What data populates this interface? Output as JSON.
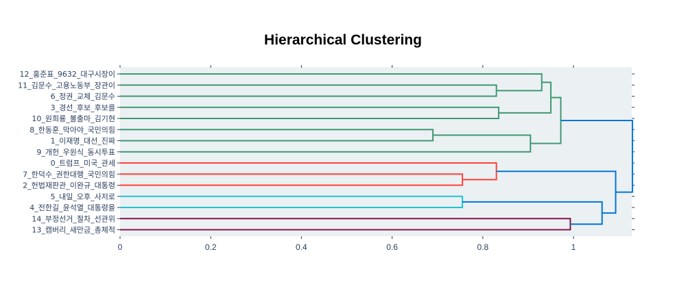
{
  "chart_data": {
    "type": "dendrogram",
    "title": "Hierarchical Clustering",
    "orientation": "horizontal",
    "xlabel": "",
    "ylabel": "",
    "xlim": [
      0,
      1.13
    ],
    "xticks": [
      0,
      0.2,
      0.4,
      0.6,
      0.8,
      1
    ],
    "xtick_labels": [
      "0",
      "0.2",
      "0.4",
      "0.6",
      "0.8",
      "1"
    ],
    "leaves": [
      "12_홍준표_9632_대구시장이",
      "11_김문수_고용노동부_장관이",
      "6_정권_교체_김문수",
      "3_경선_후보_후보를",
      "10_원희룡_불출마_김기현",
      "8_한동훈_막아야_국민의힘",
      "1_이재명_대선_진짜",
      "9_개헌_우원식_동시투표",
      "0_트럼프_미국_관세",
      "7_한덕수_권한대행_국민의힘",
      "2_헌법재판관_이완규_대통령",
      "5_내일_오후_사저로",
      "4_전한길_윤석열_대통령을",
      "14_부정선거_절차_선관위",
      "13_캠버리_새만금_총체적"
    ],
    "merges": [
      {
        "a": 5,
        "b": 6,
        "height": 0.69,
        "color": "#3d9970"
      },
      {
        "a": 1,
        "b": 2,
        "height": 0.83,
        "color": "#3d9970"
      },
      {
        "a": 3,
        "b": 4,
        "height": 0.835,
        "color": "#3d9970"
      },
      {
        "a": 0,
        "b": "m1",
        "height": 0.93,
        "color": "#3d9970"
      },
      {
        "a": "m3",
        "b": "m2",
        "height": 0.95,
        "color": "#3d9970"
      },
      {
        "a": "m0",
        "b": 7,
        "height": 0.905,
        "color": "#3d9970"
      },
      {
        "a": "m4",
        "b": "m5",
        "height": 0.972,
        "color": "#3d9970"
      },
      {
        "a": 9,
        "b": 10,
        "height": 0.755,
        "color": "#ff4136"
      },
      {
        "a": 8,
        "b": "m7",
        "height": 0.83,
        "color": "#ff4136"
      },
      {
        "a": 11,
        "b": 12,
        "height": 0.755,
        "color": "#1fc4d2"
      },
      {
        "a": 13,
        "b": 14,
        "height": 0.993,
        "color": "#85144b"
      },
      {
        "a": "m9",
        "b": "m10",
        "height": 1.063,
        "color": "#0074d9"
      },
      {
        "a": "m8",
        "b": "m11",
        "height": 1.093,
        "color": "#0074d9"
      },
      {
        "a": "m6",
        "b": "m12",
        "height": 1.13,
        "color": "#0074d9"
      }
    ],
    "grid": false,
    "plot_background": "#ebf0f3",
    "axis_color": "#2a3f5f"
  }
}
